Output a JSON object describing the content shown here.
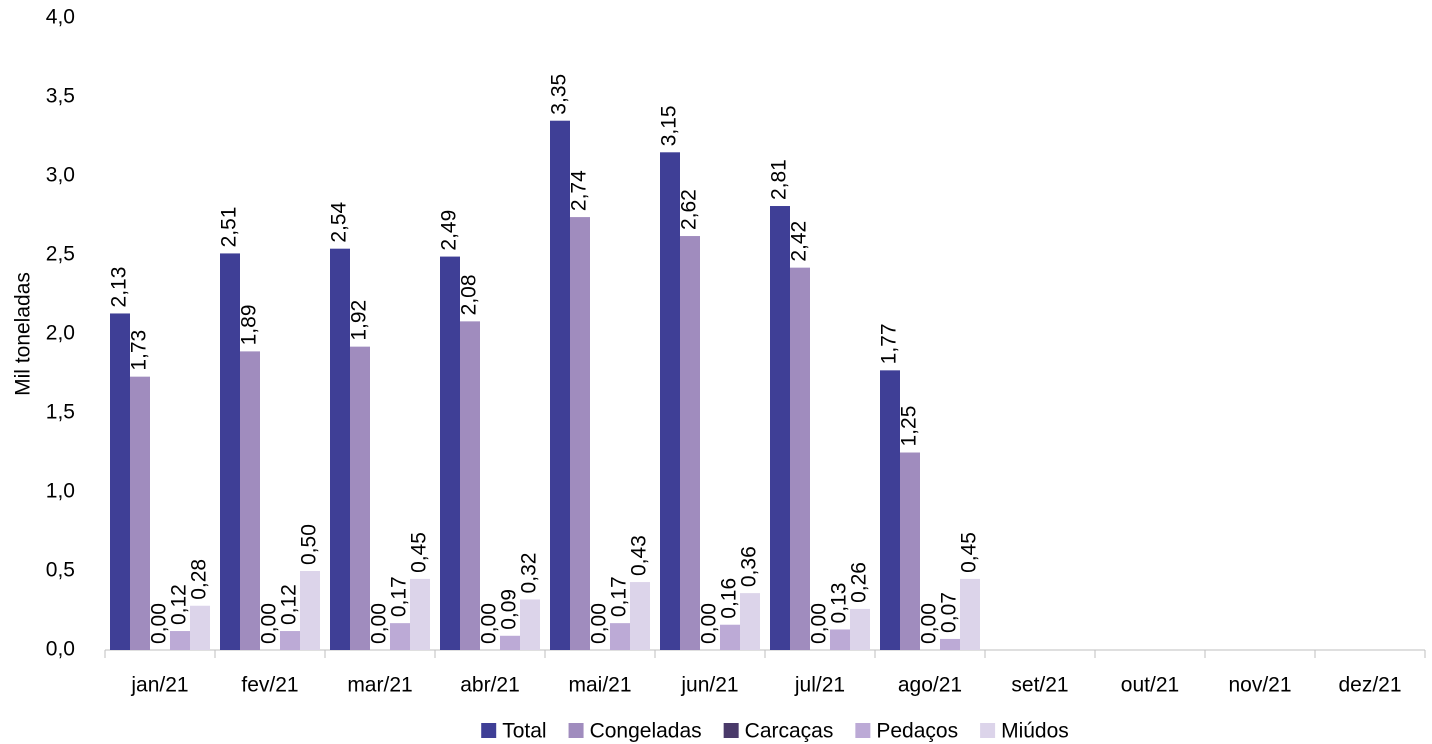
{
  "chart_data": {
    "type": "bar",
    "y_label": "Mil toneladas",
    "categories": [
      "jan/21",
      "fev/21",
      "mar/21",
      "abr/21",
      "mai/21",
      "jun/21",
      "jul/21",
      "ago/21",
      "set/21",
      "out/21",
      "nov/21",
      "dez/21"
    ],
    "series": [
      {
        "name": "Total",
        "color": "#3f3f96",
        "values": [
          2.13,
          2.51,
          2.54,
          2.49,
          3.35,
          3.15,
          2.81,
          1.77,
          null,
          null,
          null,
          null
        ],
        "value_labels": [
          "2,13",
          "2,51",
          "2,54",
          "2,49",
          "3,35",
          "3,15",
          "2,81",
          "1,77",
          null,
          null,
          null,
          null
        ]
      },
      {
        "name": "Congeladas",
        "color": "#a08cbe",
        "values": [
          1.73,
          1.89,
          1.92,
          2.08,
          2.74,
          2.62,
          2.42,
          1.25,
          null,
          null,
          null,
          null
        ],
        "value_labels": [
          "1,73",
          "1,89",
          "1,92",
          "2,08",
          "2,74",
          "2,62",
          "2,42",
          "1,25",
          null,
          null,
          null,
          null
        ]
      },
      {
        "name": "Carcaças",
        "color": "#4a3a6a",
        "values": [
          0,
          0,
          0,
          0,
          0,
          0,
          0,
          0,
          null,
          null,
          null,
          null
        ],
        "value_labels": [
          "0,00",
          "0,00",
          "0,00",
          "0,00",
          "0,00",
          "0,00",
          "0,00",
          "0,00",
          null,
          null,
          null,
          null
        ]
      },
      {
        "name": "Pedaços",
        "color": "#bcaad6",
        "values": [
          0.12,
          0.12,
          0.17,
          0.09,
          0.17,
          0.16,
          0.13,
          0.07,
          null,
          null,
          null,
          null
        ],
        "value_labels": [
          "0,12",
          "0,12",
          "0,17",
          "0,09",
          "0,17",
          "0,16",
          "0,13",
          "0,07",
          null,
          null,
          null,
          null
        ]
      },
      {
        "name": "Miúdos",
        "color": "#dcd4ea",
        "values": [
          0.28,
          0.5,
          0.45,
          0.32,
          0.43,
          0.36,
          0.26,
          0.45,
          null,
          null,
          null,
          null
        ],
        "value_labels": [
          "0,28",
          "0,50",
          "0,45",
          "0,32",
          "0,43",
          "0,36",
          "0,26",
          "0,45",
          null,
          null,
          null,
          null
        ]
      }
    ],
    "ylim": [
      0,
      4
    ],
    "yticks": [
      {
        "value": 0,
        "label": "0,0"
      },
      {
        "value": 0.5,
        "label": "0,5"
      },
      {
        "value": 1,
        "label": "1,0"
      },
      {
        "value": 1.5,
        "label": "1,5"
      },
      {
        "value": 2,
        "label": "2,0"
      },
      {
        "value": 2.5,
        "label": "2,5"
      },
      {
        "value": 3,
        "label": "3,0"
      },
      {
        "value": 3.5,
        "label": "3,5"
      },
      {
        "value": 4,
        "label": "4,0"
      }
    ],
    "grid": false,
    "legend": "bottom"
  }
}
